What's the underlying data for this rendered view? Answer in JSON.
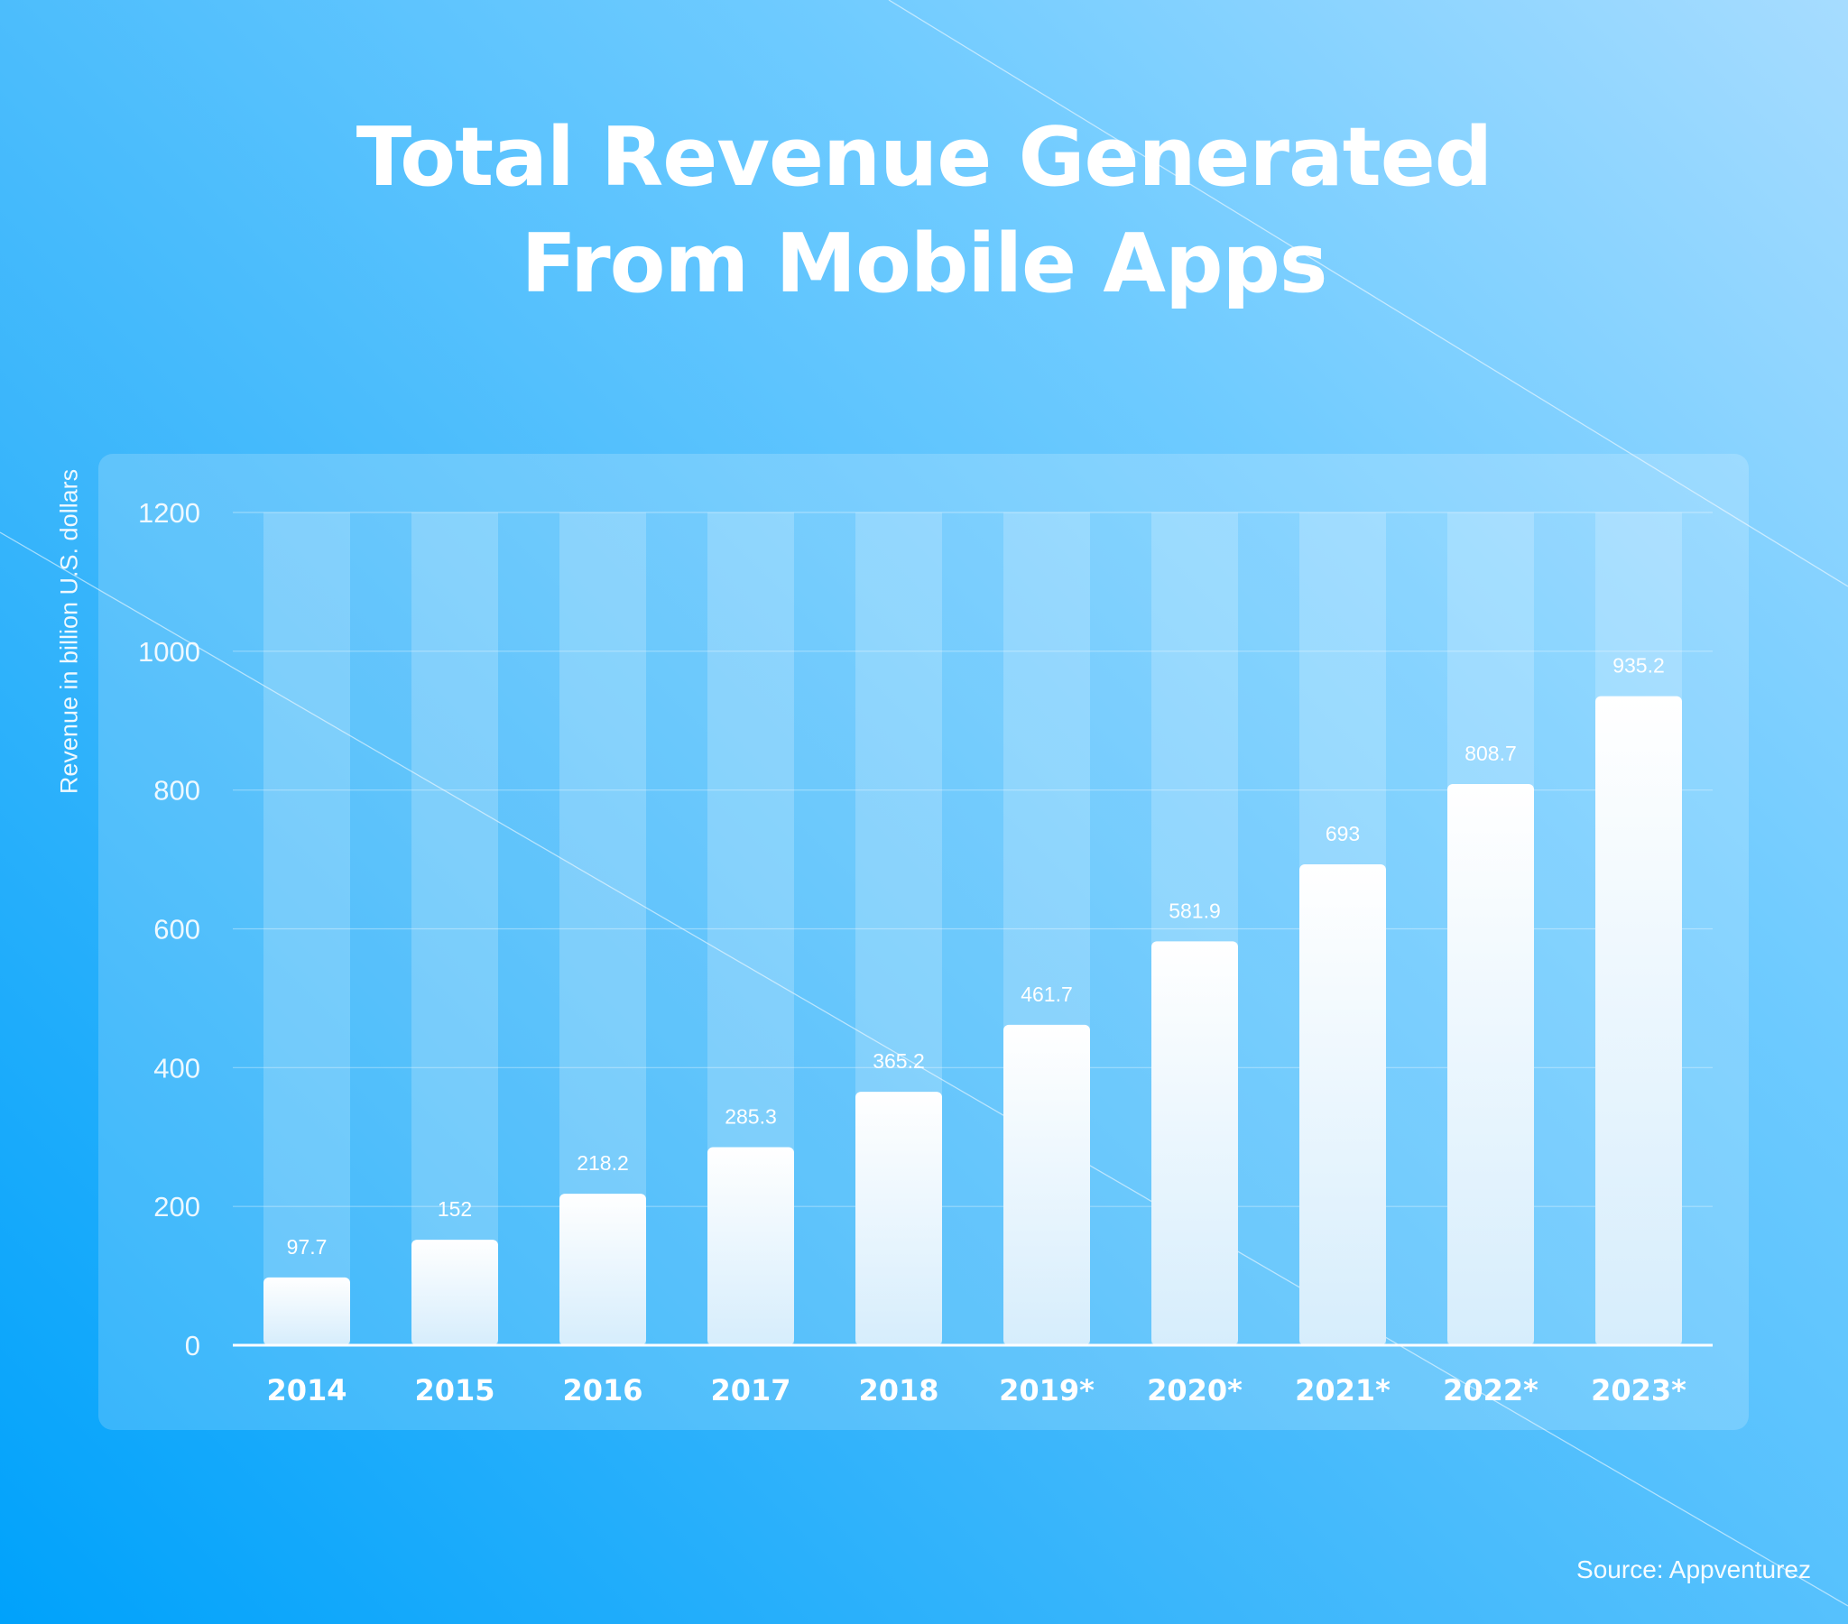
{
  "title_line1": "Total Revenue Generated",
  "title_line2": "From Mobile Apps",
  "source": "Source: Appventurez",
  "chart_data": {
    "type": "bar",
    "title": "Total Revenue Generated From Mobile Apps",
    "xlabel": "",
    "ylabel": "Revenue in billion U.S. dollars",
    "ylim": [
      0,
      1200
    ],
    "yticks": [
      0,
      200,
      400,
      600,
      800,
      1000,
      1200
    ],
    "categories": [
      "2014",
      "2015",
      "2016",
      "2017",
      "2018",
      "2019*",
      "2020*",
      "2021*",
      "2022*",
      "2023*"
    ],
    "values": [
      97.7,
      152,
      218.2,
      285.3,
      365.2,
      461.7,
      581.9,
      693,
      808.7,
      935.2
    ],
    "value_labels": [
      "97.7",
      "152",
      "218.2",
      "285.3",
      "365.2",
      "461.7",
      "581.9",
      "693",
      "808.7",
      "935.2"
    ],
    "grid": true,
    "legend": "none",
    "bar_color": "#ffffff",
    "track_color": "rgba(255,255,255,0.2)"
  }
}
